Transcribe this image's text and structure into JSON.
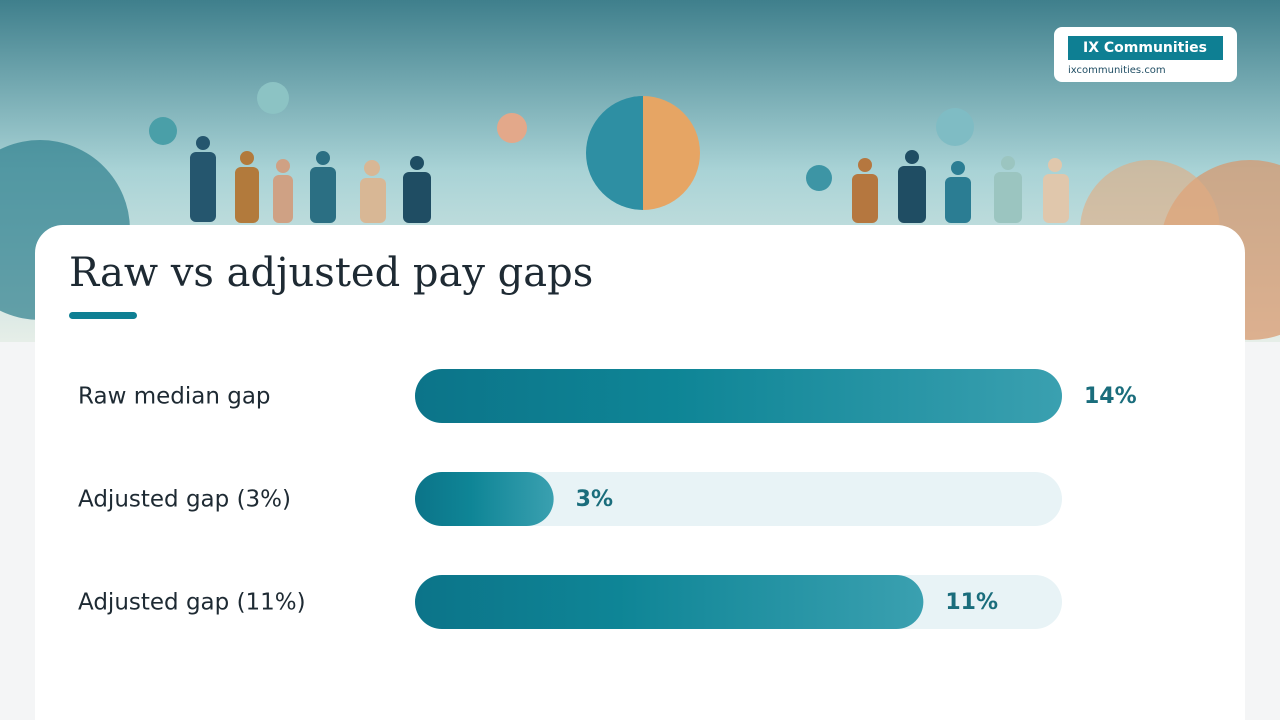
{
  "brand": {
    "name": "IX Communities",
    "url": "ixcommunities.com"
  },
  "chart_data": {
    "type": "bar",
    "orientation": "horizontal",
    "title": "Raw vs adjusted pay gaps",
    "categories": [
      "Raw median gap",
      "Adjusted gap (3%)",
      "Adjusted gap (11%)"
    ],
    "values": [
      14,
      3,
      11
    ],
    "value_labels": [
      "14%",
      "3%",
      "11%"
    ],
    "xlim": [
      0,
      14
    ],
    "color": "#0e7f93"
  }
}
